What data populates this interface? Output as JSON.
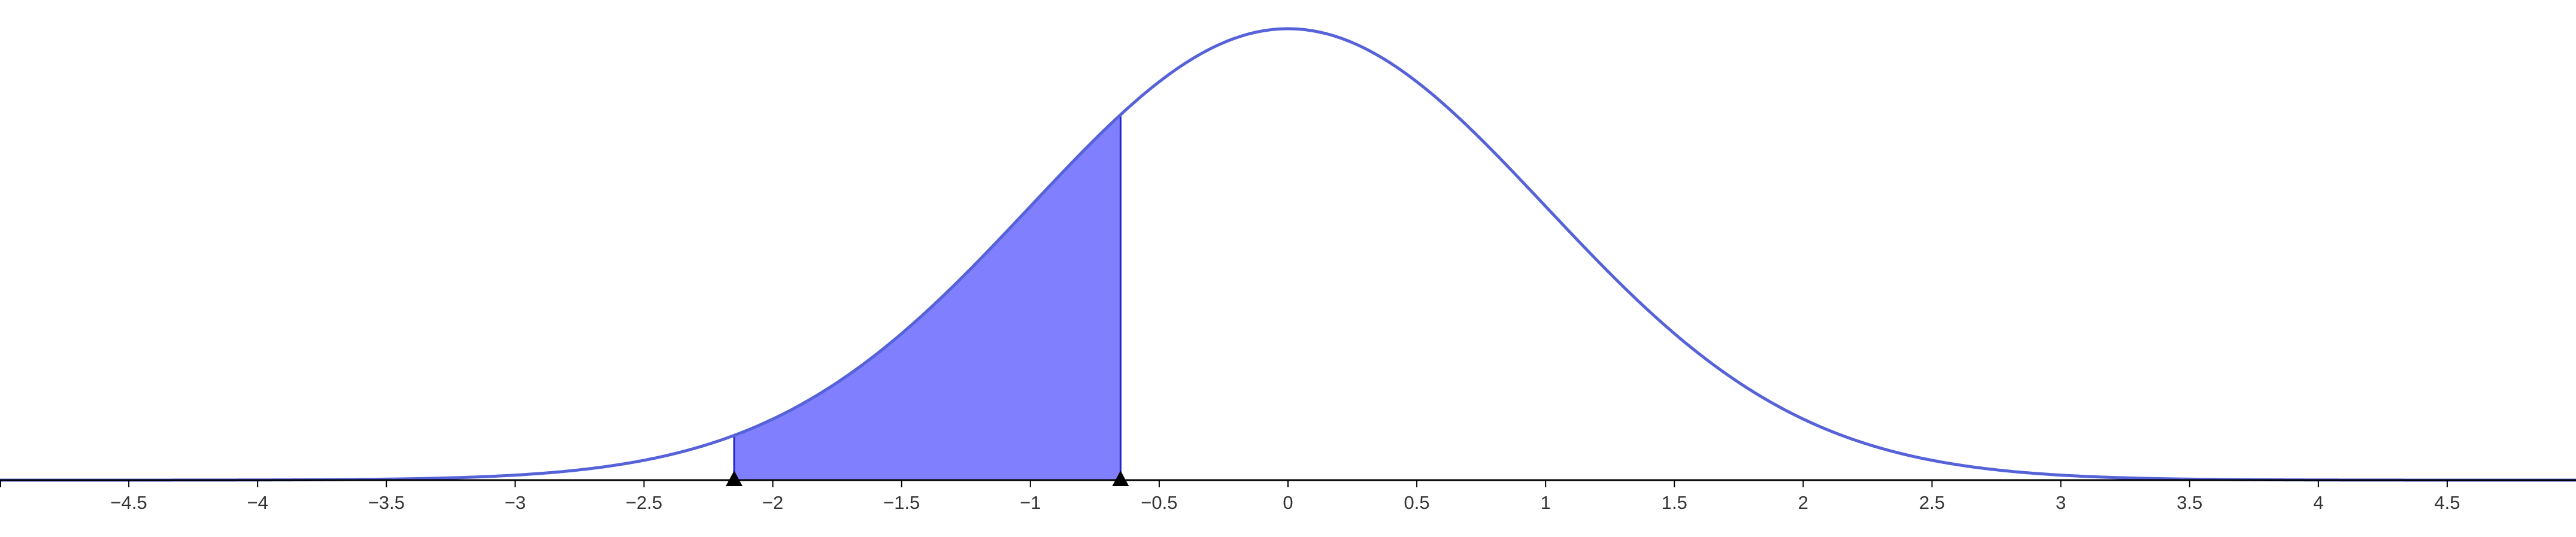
{
  "chart_data": {
    "type": "area",
    "title": "",
    "xlabel": "",
    "ylabel": "",
    "distribution": "standard normal density",
    "mean": 0,
    "sd": 1,
    "xlim": [
      -5.0,
      5.0
    ],
    "ylim": [
      0,
      0.4
    ],
    "grid": false,
    "legend": "none",
    "x_ticks": [
      -4.5,
      -4,
      -3.5,
      -3,
      -2.5,
      -2,
      -1.5,
      -1,
      -0.5,
      0,
      0.5,
      1,
      1.5,
      2,
      2.5,
      3,
      3.5,
      4,
      4.5
    ],
    "x_tick_labels": [
      "−4.5",
      "−4",
      "−3.5",
      "−3",
      "−2.5",
      "−2",
      "−1.5",
      "−1",
      "−0.5",
      "0",
      "0.5",
      "1",
      "1.5",
      "2",
      "2.5",
      "3",
      "3.5",
      "4",
      "4.5"
    ],
    "shaded_region": {
      "from": -2.15,
      "to": -0.65
    },
    "markers": [
      -2.15,
      -0.65
    ],
    "colors": {
      "curve": "#5662d8",
      "fill": "#8080ff",
      "region_edge": "#2222cc",
      "axis": "#000000",
      "tick_text": "#333333",
      "marker": "#000000"
    }
  }
}
